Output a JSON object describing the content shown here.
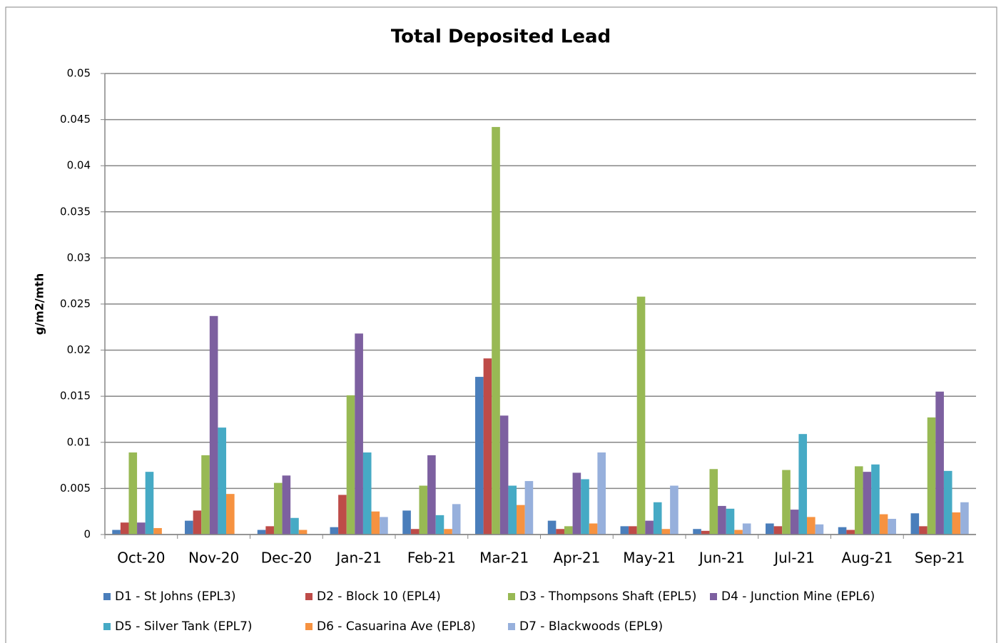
{
  "chart_data": {
    "type": "bar",
    "title": "Total Deposited Lead",
    "y_label": "g/m2/mth",
    "categories": [
      "Oct-20",
      "Nov-20",
      "Dec-20",
      "Jan-21",
      "Feb-21",
      "Mar-21",
      "Apr-21",
      "May-21",
      "Jun-21",
      "Jul-21",
      "Aug-21",
      "Sep-21"
    ],
    "series": [
      {
        "name": "D1 - St Johns (EPL3)",
        "color": "#4a7ebb",
        "values": [
          0.0005,
          0.0015,
          0.0005,
          0.0008,
          0.0026,
          0.0171,
          0.0015,
          0.0009,
          0.0006,
          0.0012,
          0.0008,
          0.0023
        ]
      },
      {
        "name": "D2 - Block 10 (EPL4)",
        "color": "#be4b48",
        "values": [
          0.0013,
          0.0026,
          0.0009,
          0.0043,
          0.0006,
          0.0191,
          0.0006,
          0.0009,
          0.0004,
          0.0009,
          0.0005,
          0.0009
        ]
      },
      {
        "name": "D3 - Thompsons Shaft (EPL5)",
        "color": "#98b954",
        "values": [
          0.0089,
          0.0086,
          0.0056,
          0.0151,
          0.0053,
          0.0442,
          0.0009,
          0.0258,
          0.0071,
          0.007,
          0.0074,
          0.0127
        ]
      },
      {
        "name": "D4 - Junction Mine (EPL6)",
        "color": "#7d60a0",
        "values": [
          0.0013,
          0.0237,
          0.0064,
          0.0218,
          0.0086,
          0.0129,
          0.0067,
          0.0015,
          0.0031,
          0.0027,
          0.0068,
          0.0155
        ]
      },
      {
        "name": "D5 - Silver Tank (EPL7)",
        "color": "#46aac5",
        "values": [
          0.0068,
          0.0116,
          0.0018,
          0.0089,
          0.0021,
          0.0053,
          0.006,
          0.0035,
          0.0028,
          0.0109,
          0.0076,
          0.0069
        ]
      },
      {
        "name": "D6 - Casuarina Ave (EPL8)",
        "color": "#f69240",
        "values": [
          0.0007,
          0.0044,
          0.0005,
          0.0025,
          0.0006,
          0.0032,
          0.0012,
          0.0006,
          0.0005,
          0.0019,
          0.0022,
          0.0024
        ]
      },
      {
        "name": "D7 - Blackwoods (EPL9)",
        "color": "#97b0dc",
        "values": [
          null,
          null,
          null,
          0.0019,
          0.0033,
          0.0058,
          0.0089,
          0.0053,
          0.0012,
          0.0011,
          0.0017,
          0.0035
        ]
      }
    ],
    "ylim": [
      0,
      0.05
    ],
    "yticks": [
      0,
      0.005,
      0.01,
      0.015,
      0.02,
      0.025,
      0.03,
      0.035,
      0.04,
      0.045,
      0.05
    ],
    "grid": true
  }
}
